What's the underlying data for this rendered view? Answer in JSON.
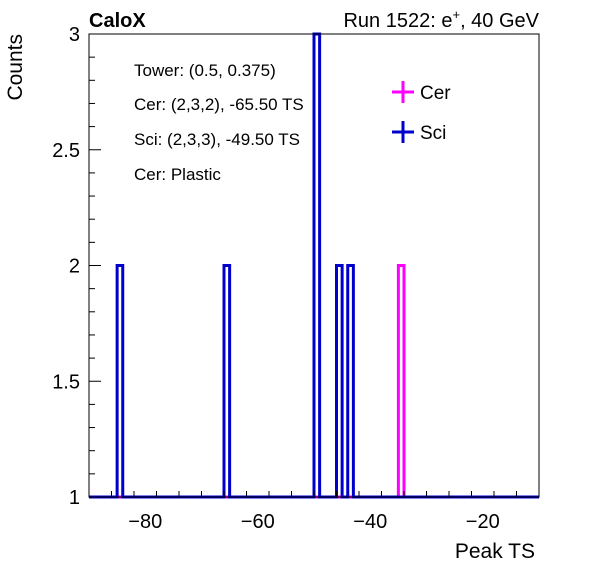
{
  "header": {
    "left": "CaloX",
    "right_prefix": "Run 1522: e",
    "right_sup": "+",
    "right_suffix": ", 40 GeV"
  },
  "info_box": [
    "Tower: (0.5, 0.375)",
    "Cer: (2,3,2), -65.50 TS",
    "Sci: (2,3,3), -49.50 TS",
    "Cer: Plastic"
  ],
  "colors": {
    "cer": "#ff00ff",
    "sci": "#0000cc",
    "axis": "#000000"
  },
  "chart_data": {
    "type": "histogram-step",
    "xlabel": "Peak TS",
    "ylabel": "Counts",
    "xlim": [
      -90,
      -10
    ],
    "ylim": [
      1,
      3
    ],
    "x_ticks": [
      -80,
      -60,
      -40,
      -20
    ],
    "x_tick_labels": [
      "−80",
      "−60",
      "−40",
      "−20"
    ],
    "y_ticks": [
      1,
      1.5,
      2,
      2.5,
      3
    ],
    "y_tick_labels": [
      "1",
      "1.5",
      "2",
      "2.5",
      "3"
    ],
    "legend": {
      "placement": "top-right"
    },
    "series": [
      {
        "name": "Cer",
        "color": "#ff00ff",
        "bins": [
          {
            "lo": -35,
            "hi": -34,
            "count": 2
          }
        ]
      },
      {
        "name": "Sci",
        "color": "#0000cc",
        "bins": [
          {
            "lo": -85,
            "hi": -84,
            "count": 2
          },
          {
            "lo": -66,
            "hi": -65,
            "count": 2
          },
          {
            "lo": -50,
            "hi": -49,
            "count": 3
          },
          {
            "lo": -46,
            "hi": -45,
            "count": 2
          },
          {
            "lo": -44,
            "hi": -43,
            "count": 2
          }
        ]
      }
    ]
  }
}
